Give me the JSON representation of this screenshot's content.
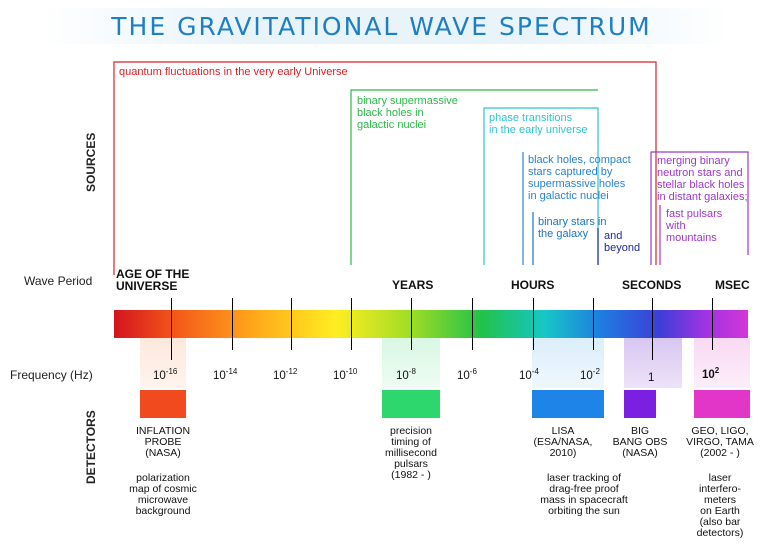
{
  "title": "THE GRAVITATIONAL WAVE SPECTRUM",
  "side_labels": {
    "sources": "SOURCES",
    "detectors": "DETECTORS"
  },
  "row_labels": {
    "wave_period": "Wave Period",
    "frequency": "Frequency (Hz)"
  },
  "colors": {
    "title": "#1d7fc4",
    "quantum": "#d4242a",
    "smbh": "#2db84a",
    "phase": "#2ec4cf",
    "bh_smbh": "#2a83c9",
    "binary": "#1b74c3",
    "beyond": "#1f2a9d",
    "merging": "#9c39c8"
  },
  "sources": {
    "quantum": "quantum fluctuations in the very early Universe",
    "smbh": "binary supermassive\nblack holes in\ngalactic nuclei",
    "phase": "phase transitions\nin the early universe",
    "bh_smbh": "black holes, compact\nstars captured by\nsupermassive holes\nin galactic nuclei",
    "binary": "binary stars in\nthe galaxy",
    "beyond": "and\nbeyond",
    "merging": "merging binary\nneutron stars and\nstellar black holes\nin distant galaxies;",
    "pulsars": "fast pulsars\nwith\nmountains"
  },
  "periods": {
    "age_of_universe": "AGE OF THE\nUNIVERSE",
    "years": "YEARS",
    "hours": "HOURS",
    "seconds": "SECONDS",
    "msec": "MSEC"
  },
  "frequencies": [
    {
      "base": "10",
      "exp": "-16"
    },
    {
      "base": "10",
      "exp": "-14"
    },
    {
      "base": "10",
      "exp": "-12"
    },
    {
      "base": "10",
      "exp": "-10"
    },
    {
      "base": "10",
      "exp": "-8"
    },
    {
      "base": "10",
      "exp": "-6"
    },
    {
      "base": "10",
      "exp": "-4"
    },
    {
      "base": "10",
      "exp": "-2"
    },
    {
      "base": "1",
      "exp": ""
    },
    {
      "base": "10",
      "exp": "2"
    }
  ],
  "detectors": {
    "inflation": {
      "name": "INFLATION\nPROBE\n(NASA)",
      "desc": "polarization\nmap of cosmic\nmicrowave\nbackground",
      "color": "#f04a1e"
    },
    "pulsar_timing": {
      "name": "precision\ntiming of\nmillisecond\npulsars\n(1982 - )",
      "color": "#2ed66e"
    },
    "lisa": {
      "name": "LISA\n(ESA/NASA,\n2010)",
      "desc": "laser tracking of\ndrag-free proof\nmass in spacecraft\norbiting the sun",
      "color": "#1e84e8"
    },
    "bbo": {
      "name": "BIG\nBANG OBS\n(NASA)",
      "color": "#7b1fe0"
    },
    "ground": {
      "name": "GEO, LIGO,\nVIRGO, TAMA\n(2002 - )",
      "desc": "laser\ninterfero-\nmeters\non Earth\n(also bar\ndetectors)",
      "color": "#e236c9"
    }
  }
}
